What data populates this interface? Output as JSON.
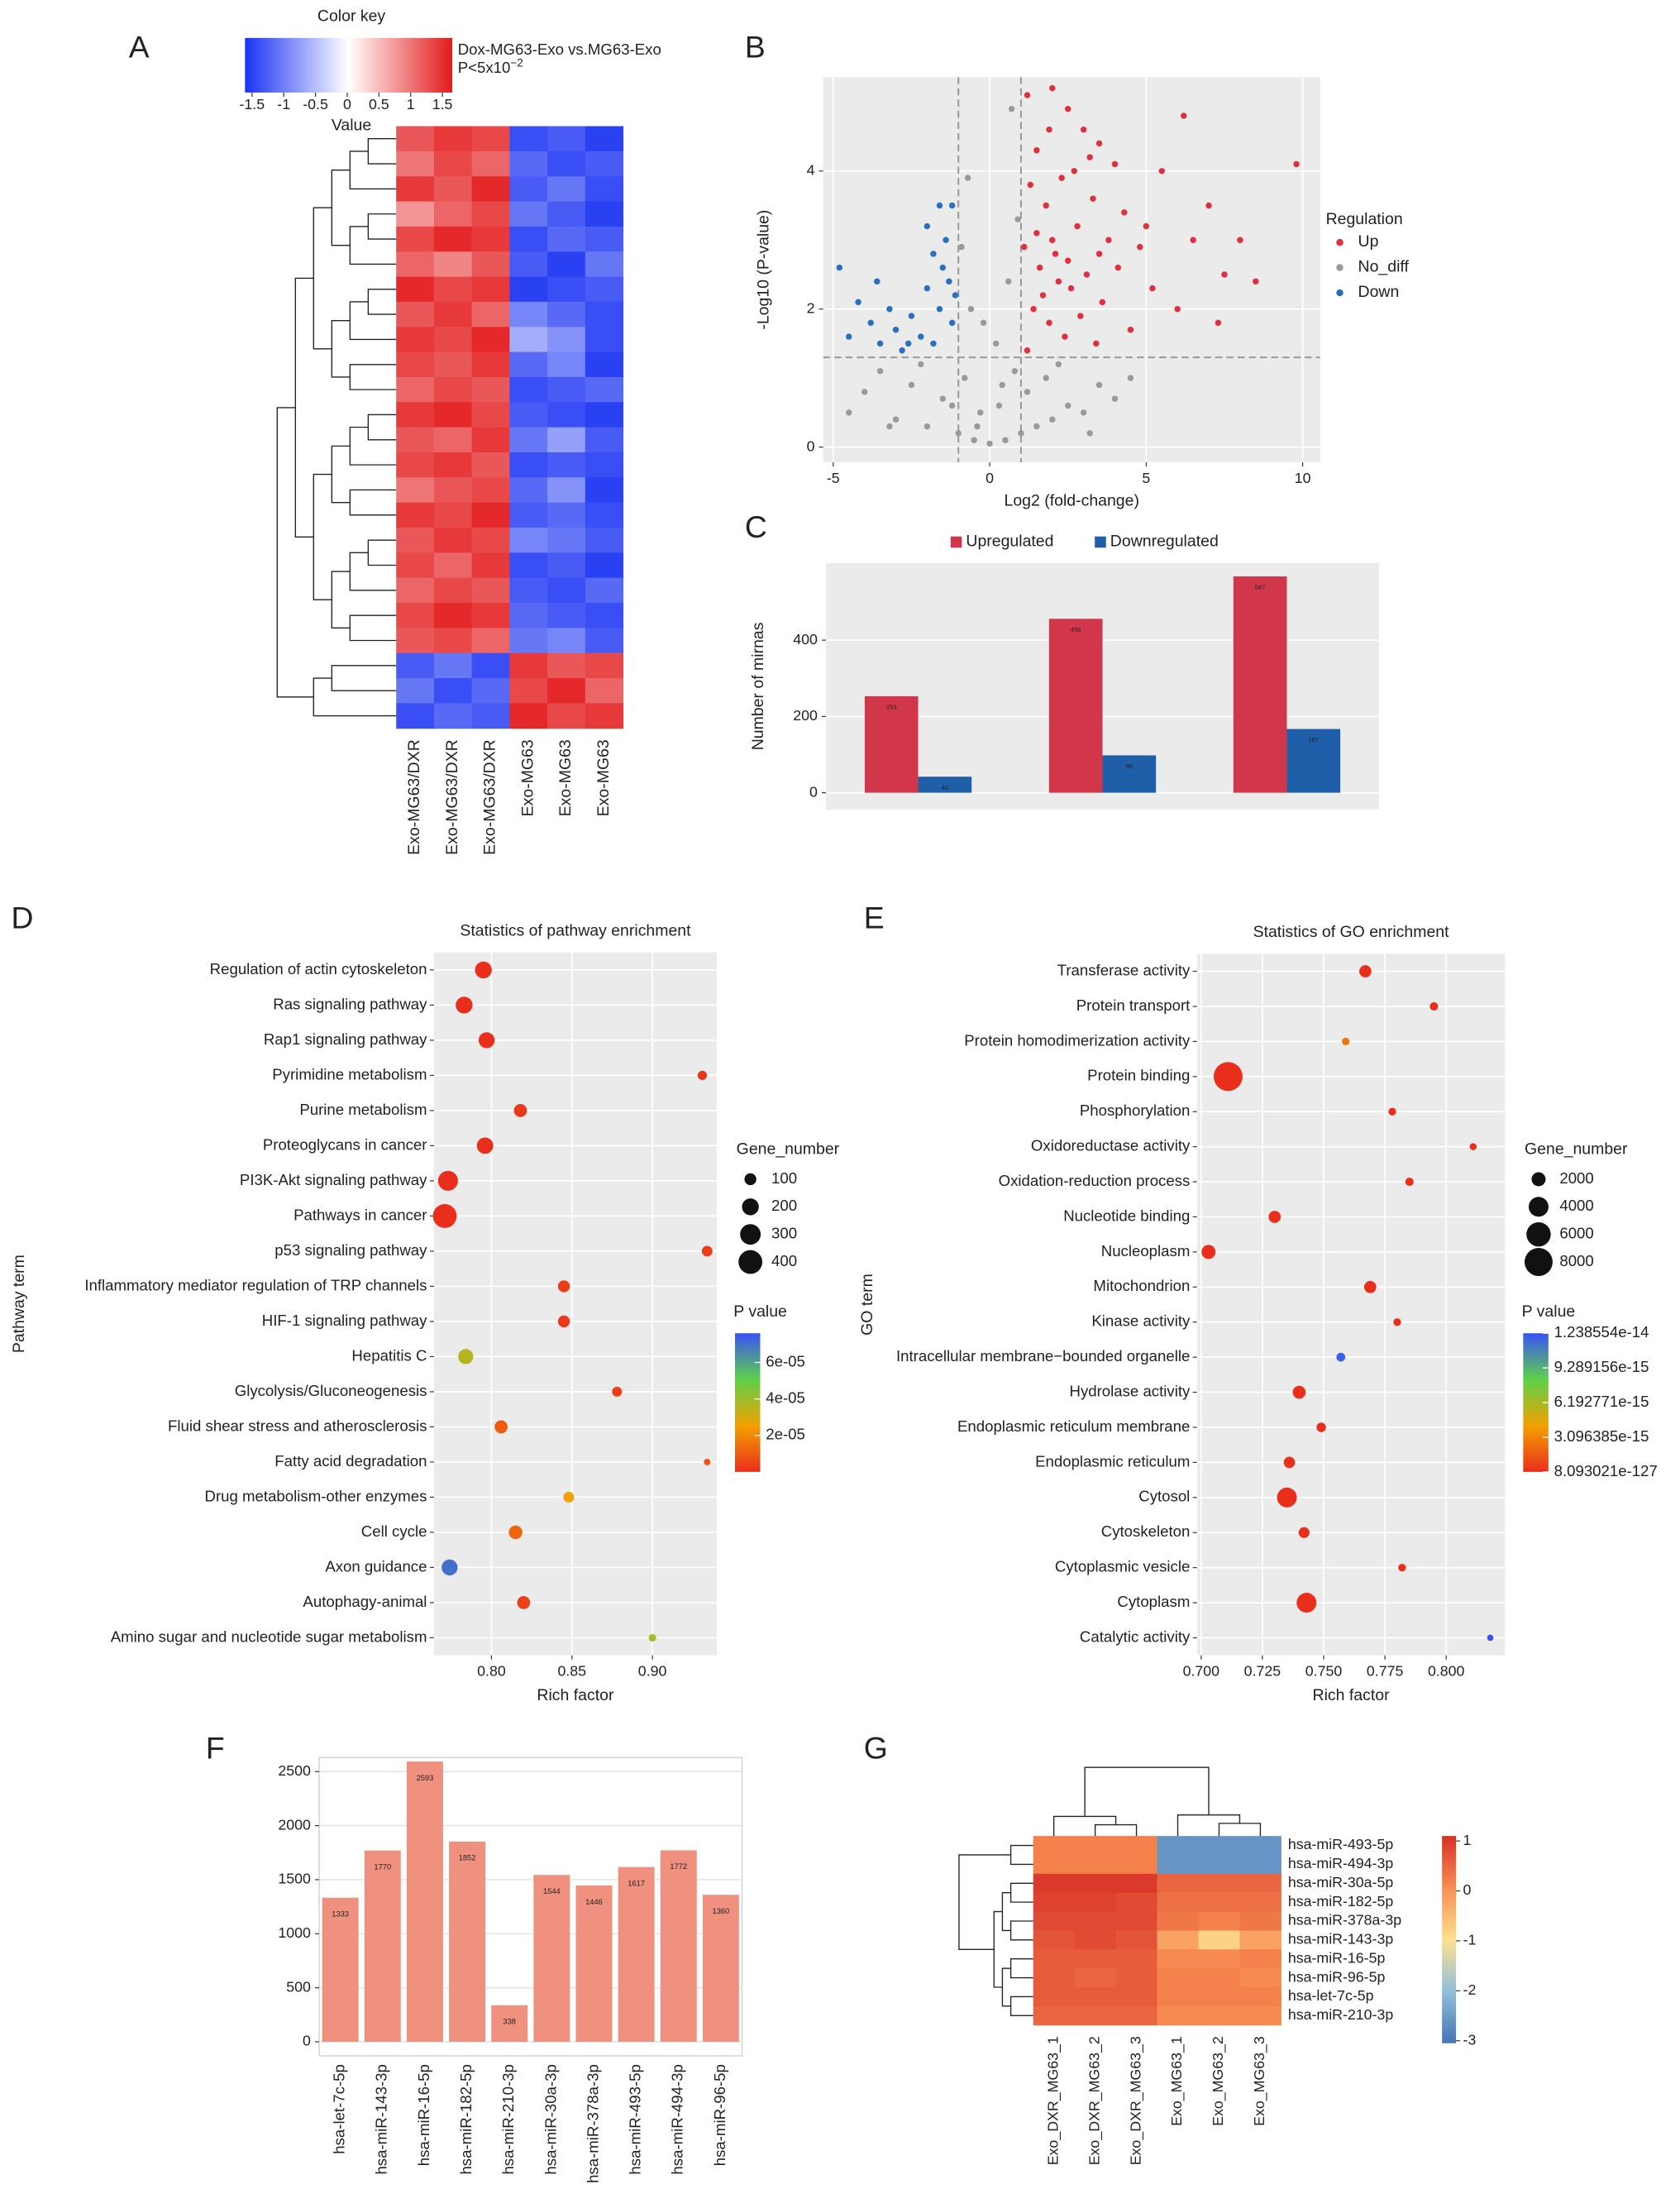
{
  "chart_data": [
    {
      "type": "heatmap",
      "panel": "A",
      "key_title": "Color key",
      "title": "Dox-MG63-Exo vs.MG63-Exo",
      "subtitle": "P<5x10",
      "subtitle_exp": "−2",
      "key_label": "Value",
      "key_ticks": [
        -1.5,
        -1,
        -0.5,
        0,
        0.5,
        1,
        1.5
      ],
      "colors": [
        "#1a33f2",
        "#ffffff",
        "#e31a1c"
      ],
      "columns": [
        "Exo-MG63/DXR",
        "Exo-MG63/DXR",
        "Exo-MG63/DXR",
        "Exo-MG63",
        "Exo-MG63",
        "Exo-MG63"
      ],
      "values": [
        [
          1.1,
          1.3,
          1.2,
          -1.3,
          -1.2,
          -1.4
        ],
        [
          0.9,
          1.2,
          1.0,
          -1.1,
          -1.3,
          -1.2
        ],
        [
          1.3,
          1.1,
          1.4,
          -1.2,
          -1.0,
          -1.3
        ],
        [
          0.7,
          1.0,
          1.2,
          -1.0,
          -1.2,
          -1.4
        ],
        [
          1.2,
          1.4,
          1.3,
          -1.3,
          -1.1,
          -1.2
        ],
        [
          1.0,
          0.8,
          1.1,
          -1.2,
          -1.4,
          -1.0
        ],
        [
          1.4,
          1.2,
          1.3,
          -1.4,
          -1.3,
          -1.2
        ],
        [
          1.1,
          1.3,
          1.0,
          -0.9,
          -1.1,
          -1.3
        ],
        [
          1.3,
          1.2,
          1.4,
          -0.6,
          -0.8,
          -1.3
        ],
        [
          1.2,
          1.1,
          1.3,
          -1.1,
          -0.9,
          -1.4
        ],
        [
          1.0,
          1.2,
          1.1,
          -1.3,
          -1.2,
          -1.1
        ],
        [
          1.3,
          1.4,
          1.2,
          -1.2,
          -1.3,
          -1.4
        ],
        [
          1.1,
          1.0,
          1.3,
          -1.0,
          -0.7,
          -1.2
        ],
        [
          1.2,
          1.3,
          1.1,
          -1.3,
          -1.2,
          -1.3
        ],
        [
          0.9,
          1.1,
          1.2,
          -1.1,
          -0.8,
          -1.4
        ],
        [
          1.3,
          1.2,
          1.4,
          -1.2,
          -1.1,
          -1.3
        ],
        [
          1.1,
          1.3,
          1.2,
          -0.9,
          -1.0,
          -1.2
        ],
        [
          1.2,
          1.0,
          1.3,
          -1.3,
          -1.2,
          -1.4
        ],
        [
          1.0,
          1.2,
          1.1,
          -1.2,
          -1.3,
          -1.1
        ],
        [
          1.2,
          1.4,
          1.3,
          -1.1,
          -1.2,
          -1.3
        ],
        [
          1.1,
          1.2,
          1.0,
          -1.0,
          -0.9,
          -1.2
        ],
        [
          -1.2,
          -1.0,
          -1.3,
          1.3,
          1.1,
          1.2
        ],
        [
          -1.0,
          -1.3,
          -1.1,
          1.2,
          1.4,
          1.0
        ],
        [
          -1.3,
          -1.1,
          -1.2,
          1.4,
          1.2,
          1.3
        ]
      ]
    },
    {
      "type": "scatter",
      "panel": "B",
      "xlabel": "Log2 (fold-change)",
      "ylabel": "-Log10 (P-value)",
      "legend_title": "Regulation",
      "background": "#ebebeb",
      "xlim": [
        -5.32,
        10.56
      ],
      "ylim": [
        -0.22,
        5.36
      ],
      "xticks": [
        -5,
        0,
        5,
        10
      ],
      "yticks": [
        0,
        2,
        4
      ],
      "thresholds": {
        "x": [
          -1,
          1
        ],
        "y": 1.3
      },
      "series": [
        {
          "name": "Up",
          "color": "#e0303f",
          "x": [
            1.2,
            1.5,
            2.0,
            2.5,
            3.0,
            3.5,
            4.0,
            1.3,
            1.8,
            2.3,
            2.8,
            3.3,
            3.8,
            4.3,
            1.1,
            1.6,
            2.1,
            2.6,
            3.1,
            3.6,
            4.1,
            1.4,
            1.9,
            2.4,
            2.9,
            3.4,
            1.2,
            1.7,
            2.2,
            5.5,
            6.2,
            7.0,
            7.5,
            8.0,
            9.8,
            5.2,
            6.0,
            7.3,
            4.5,
            5.0,
            2.7,
            3.2,
            1.5,
            2.0,
            2.5,
            3.5,
            4.8,
            6.5,
            8.5,
            1.9
          ],
          "values": [
            5.1,
            4.3,
            5.2,
            4.9,
            4.6,
            4.4,
            4.1,
            3.8,
            3.5,
            3.9,
            3.2,
            3.6,
            3.0,
            3.4,
            2.9,
            2.6,
            2.8,
            2.3,
            2.5,
            2.1,
            2.6,
            2.0,
            1.8,
            1.6,
            1.9,
            1.5,
            1.4,
            2.2,
            2.4,
            4.0,
            4.8,
            3.5,
            2.5,
            3.0,
            4.1,
            2.3,
            2.0,
            1.8,
            1.7,
            3.2,
            4.0,
            4.2,
            3.1,
            3.0,
            2.7,
            2.8,
            2.9,
            3.0,
            2.4,
            4.6
          ]
        },
        {
          "name": "No_diff",
          "color": "#9a9a9a",
          "x": [
            -4.5,
            -4.0,
            -3.5,
            -3.0,
            -2.5,
            -2.0,
            -1.5,
            -1.0,
            -0.5,
            0,
            0.5,
            1.0,
            1.5,
            2.0,
            2.5,
            3.0,
            3.5,
            4.0,
            4.5,
            -0.8,
            -0.3,
            0.3,
            0.8,
            -0.6,
            0.6,
            0.2,
            -0.2,
            0.9,
            -0.9,
            0.4,
            -0.4,
            1.2,
            -1.2,
            2.2,
            -2.2,
            0.7,
            -0.7,
            3.2,
            -3.2,
            1.8
          ],
          "values": [
            0.5,
            0.8,
            1.1,
            0.4,
            0.9,
            0.3,
            0.7,
            0.2,
            0.1,
            0.05,
            0.1,
            0.2,
            0.3,
            0.4,
            0.6,
            0.5,
            0.9,
            0.7,
            1.0,
            1.0,
            0.5,
            0.6,
            1.1,
            2.0,
            2.4,
            1.5,
            1.8,
            3.3,
            2.9,
            0.9,
            0.3,
            0.8,
            0.6,
            1.2,
            1.2,
            4.9,
            3.9,
            0.2,
            0.3,
            1.0
          ]
        },
        {
          "name": "Down",
          "color": "#2a6fc0",
          "x": [
            -4.8,
            -4.5,
            -4.2,
            -3.8,
            -3.5,
            -3.2,
            -3.0,
            -2.8,
            -2.5,
            -2.2,
            -2.0,
            -1.8,
            -1.6,
            -1.5,
            -1.4,
            -1.3,
            -1.2,
            -1.6,
            -2.0,
            -1.2,
            -3.6,
            -1.8,
            -2.6,
            -1.1
          ],
          "values": [
            2.6,
            1.6,
            2.1,
            1.8,
            1.5,
            2.0,
            1.7,
            1.4,
            1.9,
            1.6,
            2.3,
            1.5,
            2.0,
            2.6,
            3.0,
            2.4,
            1.8,
            3.5,
            3.2,
            3.5,
            2.4,
            2.8,
            1.5,
            2.2
          ]
        }
      ]
    },
    {
      "type": "bar",
      "panel": "C",
      "ylabel": "Number of mirnas",
      "background": "#ebebeb",
      "ylim": [
        -44,
        602
      ],
      "yticks": [
        0,
        200,
        400
      ],
      "categories": [
        null,
        null,
        null
      ],
      "series": [
        {
          "name": "Upregulated",
          "color": "#d2364a",
          "values": [
            253,
            456,
            567
          ]
        },
        {
          "name": "Downregulated",
          "color": "#1f5ea8",
          "values": [
            42,
            98,
            167
          ]
        }
      ]
    },
    {
      "type": "bubble",
      "panel": "D",
      "title": "Statistics of pathway enrichment",
      "xlabel": "Rich factor",
      "ylabel": "Pathway term",
      "background": "#ebebeb",
      "xlim": [
        0.7643,
        0.94
      ],
      "xticks": [
        {
          "value": 0.8,
          "label": "0.80"
        },
        {
          "value": 0.85,
          "label": "0.85"
        },
        {
          "value": 0.9,
          "label": "0.90"
        }
      ],
      "categories": [
        "Regulation of actin cytoskeleton",
        "Ras signaling pathway",
        "Rap1 signaling pathway",
        "Pyrimidine metabolism",
        "Purine metabolism",
        "Proteoglycans in cancer",
        "PI3K-Akt signaling pathway",
        "Pathways in cancer",
        "p53 signaling pathway",
        "Inflammatory mediator regulation of TRP channels",
        "HIF-1 signaling pathway",
        "Hepatitis C",
        "Glycolysis/Gluconeogenesis",
        "Fluid shear stress and atherosclerosis",
        "Fatty acid degradation",
        "Drug metabolism-other enzymes",
        "Cell cycle",
        "Axon guidance",
        "Autophagy-animal",
        "Amino sugar and nucleotide sugar metabolism"
      ],
      "values": [
        0.795,
        0.783,
        0.797,
        0.931,
        0.818,
        0.796,
        0.773,
        0.771,
        0.934,
        0.845,
        0.845,
        0.784,
        0.878,
        0.806,
        0.934,
        0.848,
        0.815,
        0.774,
        0.82,
        0.9
      ],
      "gene_number": [
        200,
        200,
        180,
        60,
        120,
        190,
        280,
        400,
        80,
        100,
        100,
        160,
        70,
        120,
        30,
        80,
        130,
        180,
        120,
        40
      ],
      "p_value": [
        1e-08,
        2e-09,
        1e-08,
        1e-06,
        2e-06,
        5e-09,
        1e-10,
        1e-12,
        3e-06,
        3e-06,
        2e-06,
        3.6e-05,
        4e-06,
        1e-05,
        8e-06,
        2.6e-05,
        1.2e-05,
        7e-05,
        4e-06,
        3.8e-05
      ],
      "size_legend_title": "Gene_number",
      "size_ticks": [
        100,
        200,
        300,
        400
      ],
      "color_legend_title": "P value",
      "color_ticks": [
        {
          "value": 6e-05,
          "label": "6e-05"
        },
        {
          "value": 4e-05,
          "label": "4e-05"
        },
        {
          "value": 2e-05,
          "label": "2e-05"
        }
      ],
      "clim": [
        0,
        7.6e-05
      ],
      "colors": [
        "#ea2e1c",
        "#f2a100",
        "#5fd04a",
        "#3a52f5"
      ]
    },
    {
      "type": "bubble",
      "panel": "E",
      "title": "Statistics of GO enrichment",
      "xlabel": "Rich factor",
      "ylabel": "GO term",
      "background": "#ebebeb",
      "xlim": [
        0.6983,
        0.824
      ],
      "xticks": [
        {
          "value": 0.7,
          "label": "0.700"
        },
        {
          "value": 0.725,
          "label": "0.725"
        },
        {
          "value": 0.75,
          "label": "0.750"
        },
        {
          "value": 0.775,
          "label": "0.775"
        },
        {
          "value": 0.8,
          "label": "0.800"
        }
      ],
      "categories": [
        "Transferase activity",
        "Protein transport",
        "Protein homodimerization activity",
        "Protein binding",
        "Phosphorylation",
        "Oxidoreductase activity",
        "Oxidation-reduction process",
        "Nucleotide binding",
        "Nucleoplasm",
        "Mitochondrion",
        "Kinase activity",
        "Intracellular membrane−bounded organelle",
        "Hydrolase activity",
        "Endoplasmic reticulum membrane",
        "Endoplasmic reticulum",
        "Cytosol",
        "Cytoskeleton",
        "Cytoplasmic vesicle",
        "Cytoplasm",
        "Catalytic activity"
      ],
      "values": [
        0.767,
        0.795,
        0.759,
        0.711,
        0.778,
        0.811,
        0.785,
        0.73,
        0.703,
        0.769,
        0.78,
        0.757,
        0.74,
        0.749,
        0.736,
        0.735,
        0.742,
        0.782,
        0.743,
        0.818
      ],
      "gene_number": [
        1500,
        700,
        600,
        8500,
        600,
        500,
        700,
        1500,
        2000,
        1500,
        600,
        800,
        1700,
        900,
        1300,
        4000,
        1200,
        600,
        4000,
        400
      ],
      "p_value": [
        1e-40,
        1e-30,
        2.6e-15,
        1e-120,
        1e-30,
        1e-25,
        1e-35,
        1e-60,
        1e-90,
        1e-50,
        1e-30,
        1.2e-14,
        1e-40,
        1e-30,
        1e-40,
        1e-100,
        1e-30,
        1e-20,
        1e-110,
        1e-10
      ],
      "size_legend_title": "Gene_number",
      "size_ticks": [
        2000,
        4000,
        6000,
        8000
      ],
      "color_legend_title": "P value",
      "color_ticks": [
        1.238554e-14,
        9.289156e-15,
        6.192771e-15,
        3.096385e-15,
        8.093021e-127
      ],
      "clim": [
        8.093021e-127,
        1.238554e-14
      ],
      "colors": [
        "#ea2e1c",
        "#f2a100",
        "#5fd04a",
        "#3a52f5"
      ]
    },
    {
      "type": "bar",
      "panel": "F",
      "background": "#ffffff",
      "color": "#f0907f",
      "ylim": [
        -130,
        2630
      ],
      "yticks": [
        0,
        500,
        1000,
        1500,
        2000,
        2500
      ],
      "categories": [
        "hsa-let-7c-5p",
        "hsa-miR-143-3p",
        "hsa-miR-16-5p",
        "hsa-miR-182-5p",
        "hsa-miR-210-3p",
        "hsa-miR-30a-3p",
        "hsa-miR-378a-3p",
        "hsa-miR-493-5p",
        "hsa-miR-494-3p",
        "hsa-miR-96-5p"
      ],
      "values": [
        1333,
        1770,
        2593,
        1852,
        338,
        1544,
        1446,
        1617,
        1772,
        1360
      ]
    },
    {
      "type": "heatmap",
      "panel": "G",
      "clim": [
        -3.05,
        1.1
      ],
      "key_ticks": [
        1,
        0,
        -1,
        -2,
        -3
      ],
      "colors": [
        "#4575b4",
        "#91bfdb",
        "#fee090",
        "#f88d52",
        "#d73027"
      ],
      "rows": [
        "hsa-miR-493-5p",
        "hsa-miR-494-3p",
        "hsa-miR-30a-5p",
        "hsa-miR-182-5p",
        "hsa-miR-378a-3p",
        "hsa-miR-143-3p",
        "hsa-miR-16-5p",
        "hsa-miR-96-5p",
        "hsa-let-7c-5p",
        "hsa-miR-210-3p"
      ],
      "columns": [
        "Exo_DXR_MG63_1",
        "Exo_DXR_MG63_2",
        "Exo_DXR_MG63_3",
        "Exo_MG63_1",
        "Exo_MG63_2",
        "Exo_MG63_3"
      ],
      "values": [
        [
          0.2,
          0.2,
          0.2,
          -2.6,
          -2.6,
          -2.6
        ],
        [
          0.2,
          0.2,
          0.2,
          -2.6,
          -2.6,
          -2.6
        ],
        [
          1.0,
          1.0,
          1.0,
          0.5,
          0.5,
          0.5
        ],
        [
          0.9,
          0.9,
          0.8,
          0.4,
          0.4,
          0.4
        ],
        [
          0.8,
          0.8,
          0.8,
          0.3,
          0.2,
          0.3
        ],
        [
          0.7,
          0.8,
          0.7,
          -0.2,
          -0.8,
          -0.2
        ],
        [
          0.6,
          0.6,
          0.6,
          0.1,
          0.1,
          0.2
        ],
        [
          0.6,
          0.5,
          0.6,
          0.2,
          0.2,
          0.1
        ],
        [
          0.6,
          0.6,
          0.6,
          0.2,
          0.2,
          0.2
        ],
        [
          0.5,
          0.5,
          0.5,
          0.1,
          0.1,
          0.1
        ]
      ]
    }
  ]
}
